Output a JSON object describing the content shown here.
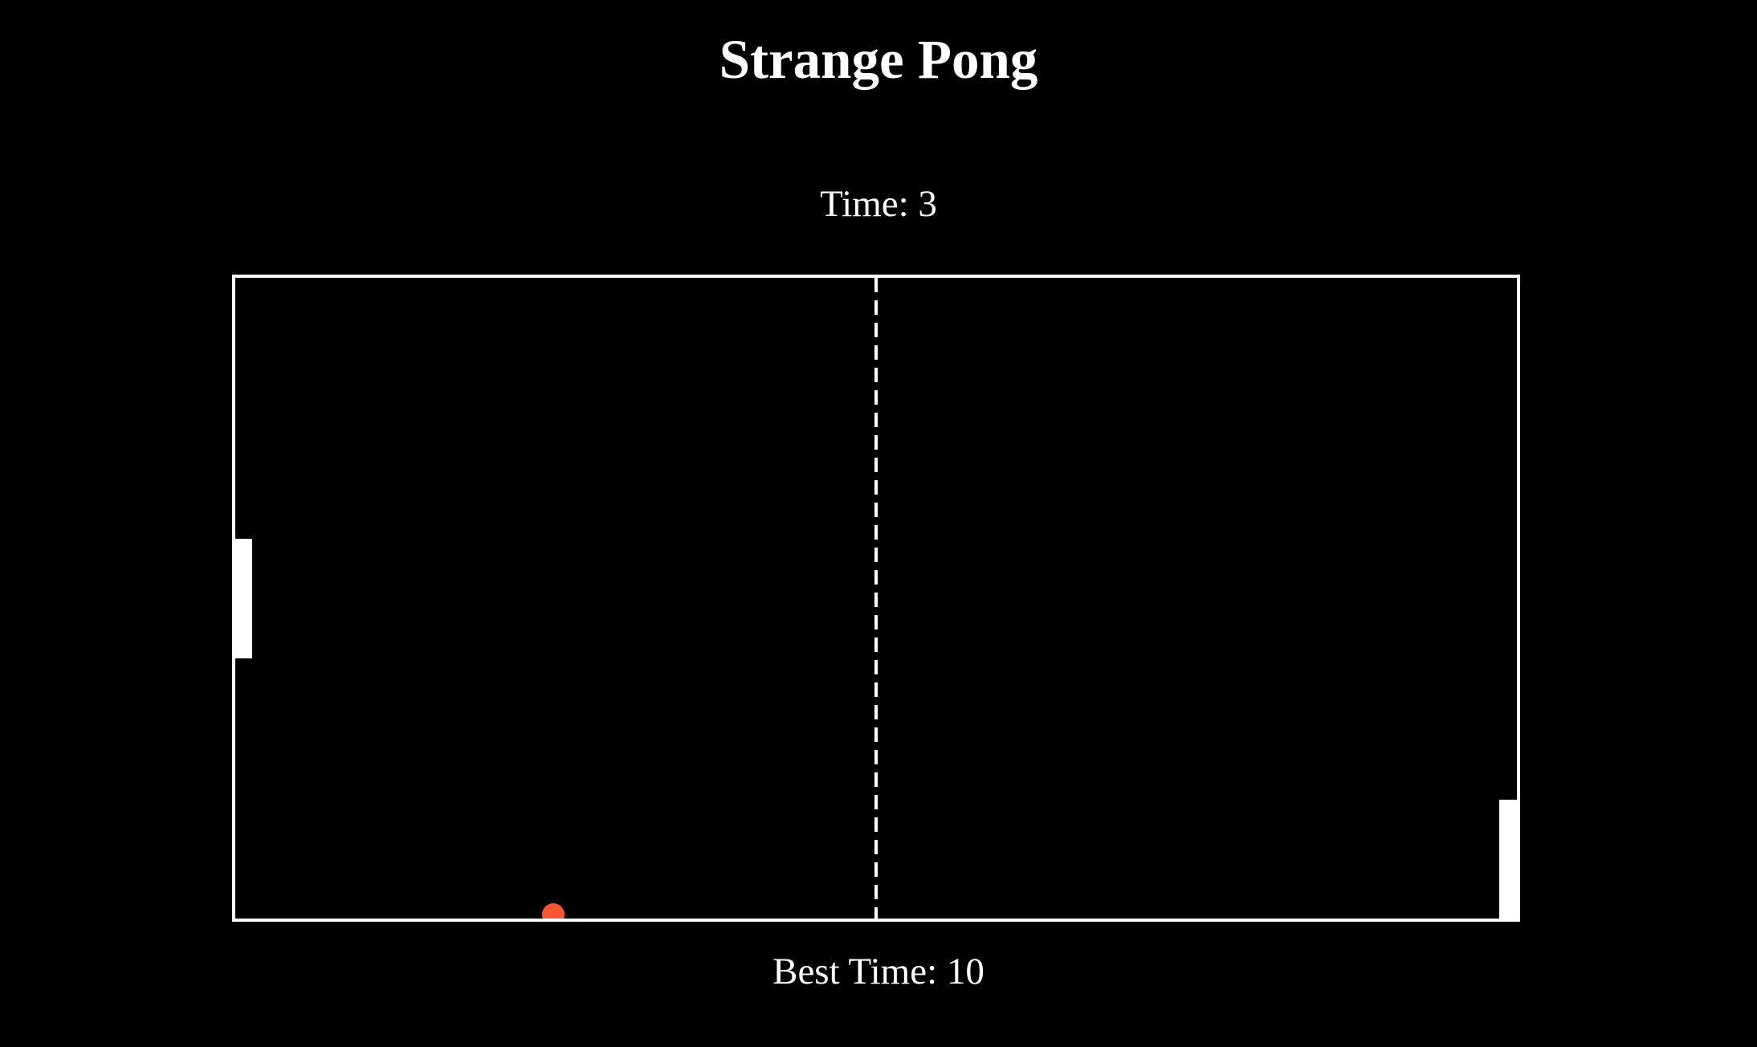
{
  "game": {
    "title": "Strange Pong",
    "time_label": "Time: 3",
    "best_time_label": "Best Time: 10",
    "time": 3,
    "best_time": 10
  },
  "colors": {
    "background": "#000000",
    "court_lines": "#ffffff",
    "paddle": "#ffffff",
    "ball": "#ff5533"
  },
  "elements": {
    "left_paddle": "white rectangular paddle",
    "right_paddle": "white rectangular paddle",
    "ball": "orange-red round ball",
    "net": "dashed center line"
  }
}
